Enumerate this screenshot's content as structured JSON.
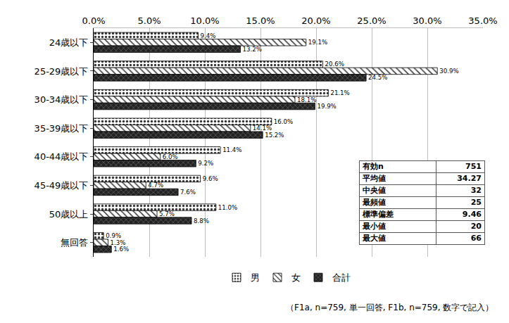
{
  "chart_data": {
    "type": "bar",
    "orientation": "horizontal",
    "categories": [
      "24歳以下",
      "25-29歳以下",
      "30-34歳以下",
      "35-39歳以下",
      "40-44歳以下",
      "45-49歳以下",
      "50歳以上",
      "無回答"
    ],
    "series": [
      {
        "name": "男",
        "color": "#ffffff",
        "marker": "dots",
        "values": [
          9.4,
          20.6,
          21.1,
          16.0,
          11.4,
          9.6,
          11.0,
          0.9
        ],
        "value_labels": [
          "9.4%",
          "20.6%",
          "21.1%",
          "16.0%",
          "11.4%",
          "9.6%",
          "11.0%",
          "0.9%"
        ]
      },
      {
        "name": "女",
        "color": "#ffffff",
        "marker": "hatch",
        "values": [
          19.1,
          30.9,
          18.1,
          14.1,
          6.0,
          4.7,
          5.7,
          1.3
        ],
        "value_labels": [
          "19.1%",
          "30.9%",
          "18.1%",
          "14.1%",
          "6.0%",
          "4.7%",
          "5.7%",
          "1.3%"
        ]
      },
      {
        "name": "合計",
        "color": "#222222",
        "marker": "crosshatch",
        "values": [
          13.2,
          24.5,
          19.9,
          15.2,
          9.2,
          7.6,
          8.8,
          1.6
        ],
        "value_labels": [
          "13.2%",
          "24.5%",
          "19.9%",
          "15.2%",
          "9.2%",
          "7.6%",
          "8.8%",
          "1.6%"
        ]
      }
    ],
    "xlim": [
      0,
      35
    ],
    "xticks": [
      {
        "value": 0,
        "label": "0.0%"
      },
      {
        "value": 5,
        "label": "5.0%"
      },
      {
        "value": 10,
        "label": "10.0%"
      },
      {
        "value": 15,
        "label": "15.0%"
      },
      {
        "value": 20,
        "label": "20.0%"
      },
      {
        "value": 25,
        "label": "25.0%"
      },
      {
        "value": 30,
        "label": "30.0%"
      },
      {
        "value": 35,
        "label": "35.0%"
      }
    ],
    "grid": true,
    "data_labels": true,
    "legend": "bottom",
    "annotations": [
      "（F1a, n=759, 単一回答, F1b, n=759, 数字で記入）"
    ],
    "table": {
      "rows": [
        [
          "有効n",
          751
        ],
        [
          "平均値",
          34.27
        ],
        [
          "中央値",
          32
        ],
        [
          "最頻値",
          25
        ],
        [
          "標準偏差",
          9.46
        ],
        [
          "最小値",
          20
        ],
        [
          "最大値",
          66
        ]
      ]
    }
  }
}
